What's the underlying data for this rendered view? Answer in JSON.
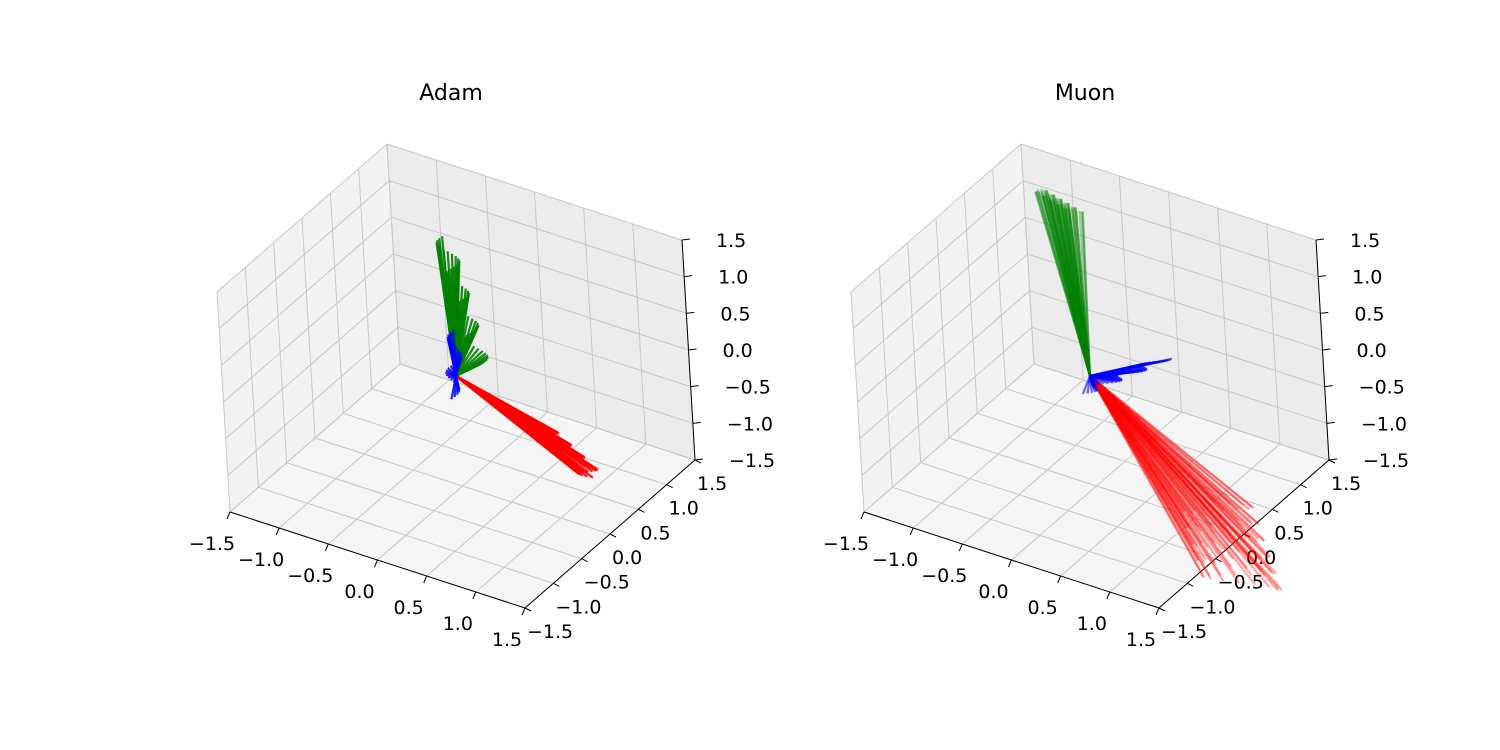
{
  "chart_data": [
    {
      "type": "3d-quiver",
      "title": "Adam",
      "xlim": [
        -1.5,
        1.5
      ],
      "ylim": [
        -1.5,
        1.5
      ],
      "zlim": [
        -1.5,
        1.5
      ],
      "x_ticks": [
        "−1.5",
        "−1.0",
        "−0.5",
        "0.0",
        "0.5",
        "1.0",
        "1.5"
      ],
      "y_ticks": [
        "−1.5",
        "−1.0",
        "−0.5",
        "0.0",
        "0.5",
        "1.0",
        "1.5"
      ],
      "z_ticks": [
        "−1.5",
        "−1.0",
        "−0.5",
        "0.0",
        "0.5",
        "1.0",
        "1.5"
      ],
      "grid": true,
      "series": [
        {
          "color": "#ff0000",
          "start": [
            0.9,
            -0.05,
            -0.3
          ],
          "end": [
            1.5,
            -0.2,
            -0.6
          ],
          "count": 60,
          "spread": 0.1,
          "opacity": 0.9
        },
        {
          "color": "#008000",
          "start": [
            0.15,
            0.2,
            0.1
          ],
          "end": [
            -0.2,
            0.25,
            1.65
          ],
          "count": 60,
          "spread": 0.07,
          "opacity": 0.9
        },
        {
          "color": "#0000ff",
          "start": [
            0.0,
            -0.1,
            -0.25
          ],
          "end": [
            -0.1,
            0.2,
            0.45
          ],
          "count": 30,
          "spread": 0.06,
          "opacity": 0.85
        }
      ]
    },
    {
      "type": "3d-quiver",
      "title": "Muon",
      "xlim": [
        -1.5,
        1.5
      ],
      "ylim": [
        -1.5,
        1.5
      ],
      "zlim": [
        -1.5,
        1.5
      ],
      "x_ticks": [
        "−1.5",
        "−1.0",
        "−0.5",
        "0.0",
        "0.5",
        "1.0",
        "1.5"
      ],
      "y_ticks": [
        "−1.5",
        "−1.0",
        "−0.5",
        "0.0",
        "0.5",
        "1.0",
        "1.5"
      ],
      "z_ticks": [
        "−1.5",
        "−1.0",
        "−0.5",
        "0.0",
        "0.5",
        "1.0",
        "1.5"
      ],
      "grid": true,
      "series": [
        {
          "color": "#ff0000",
          "start": [
            1.4,
            -0.3,
            -0.9
          ],
          "end": [
            1.9,
            -0.7,
            -1.6
          ],
          "count": 80,
          "spread": 0.3,
          "opacity": 0.35
        },
        {
          "color": "#008000",
          "start": [
            -0.8,
            0.6,
            1.8
          ],
          "end": [
            0.2,
            -0.4,
            2.6
          ],
          "count": 80,
          "spread": 0.06,
          "opacity": 0.3
        },
        {
          "color": "#0000ff",
          "start": [
            0.1,
            -0.3,
            0.0
          ],
          "end": [
            0.6,
            0.3,
            0.3
          ],
          "count": 50,
          "spread": 0.06,
          "opacity": 0.6
        }
      ]
    }
  ]
}
